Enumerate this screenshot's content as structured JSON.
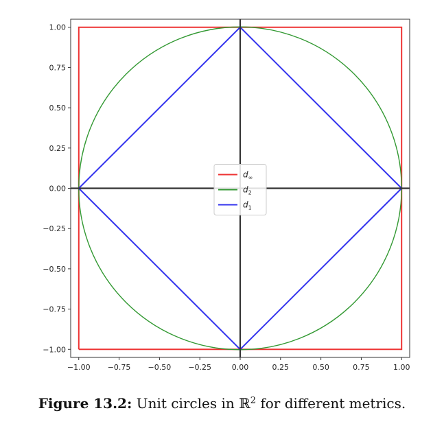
{
  "chart_data": {
    "type": "line",
    "title": "",
    "xlabel": "",
    "ylabel": "",
    "xlim": [
      -1.05,
      1.05
    ],
    "ylim": [
      -1.05,
      1.05
    ],
    "xticks": [
      "−1.00",
      "−0.75",
      "−0.50",
      "−0.25",
      "0.00",
      "0.25",
      "0.50",
      "0.75",
      "1.00"
    ],
    "yticks": [
      "1.00",
      "0.75",
      "0.50",
      "0.25",
      "0.00",
      "−0.25",
      "−0.50",
      "−0.75",
      "−1.00"
    ],
    "grid": false,
    "legend_position": "center",
    "axes_lines": {
      "x": 0,
      "y": 0,
      "color": "#333333"
    },
    "series": [
      {
        "name": "d",
        "subscript": "∞",
        "color": "#ee3333",
        "shape": "square",
        "points": [
          [
            -1,
            -1
          ],
          [
            1,
            -1
          ],
          [
            1,
            1
          ],
          [
            -1,
            1
          ],
          [
            -1,
            -1
          ]
        ]
      },
      {
        "name": "d",
        "subscript": "2",
        "color": "#339933",
        "shape": "circle",
        "radius": 1
      },
      {
        "name": "d",
        "subscript": "1",
        "color": "#3333ee",
        "shape": "diamond",
        "points": [
          [
            1,
            0
          ],
          [
            0,
            1
          ],
          [
            -1,
            0
          ],
          [
            0,
            -1
          ],
          [
            1,
            0
          ]
        ]
      }
    ]
  },
  "caption": {
    "label": "Figure 13.2:",
    "text_before": "Unit circles in ℝ",
    "superscript": "2",
    "text_after": " for different metrics."
  }
}
